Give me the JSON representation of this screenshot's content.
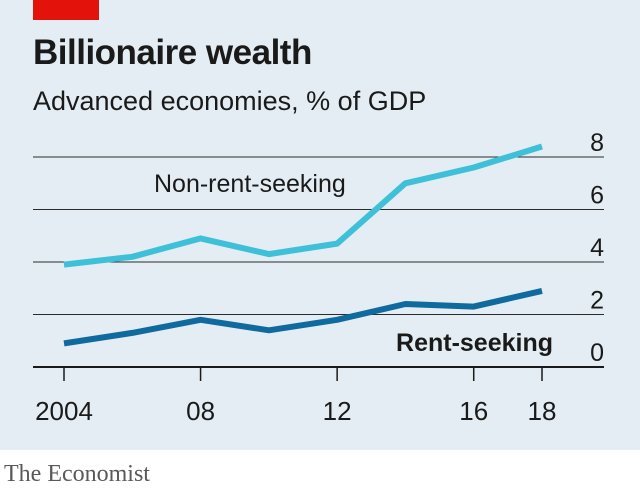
{
  "header": {
    "title": "Billionaire wealth",
    "subtitle": "Advanced economies, % of GDP"
  },
  "footer": {
    "source": "The Economist"
  },
  "colors": {
    "background": "#e3edf3",
    "accent": "#e3120b",
    "grid": "#1a1a1a",
    "non_rent_seeking": "#3ec0d8",
    "rent_seeking": "#0f6a9e"
  },
  "chart_data": {
    "type": "line",
    "title": "Billionaire wealth",
    "subtitle": "Advanced economies, % of GDP",
    "x": [
      2004,
      2006,
      2008,
      2010,
      2012,
      2014,
      2016,
      2018
    ],
    "x_ticks": [
      2004,
      2008,
      2012,
      2016,
      2018
    ],
    "x_tick_labels": [
      "2004",
      "08",
      "12",
      "16",
      "18"
    ],
    "xlim": [
      2004,
      2018
    ],
    "ylim": [
      0,
      8
    ],
    "y_ticks": [
      0,
      2,
      4,
      6,
      8
    ],
    "y_tick_labels": [
      "0",
      "2",
      "4",
      "6",
      "8"
    ],
    "y_axis_side": "right",
    "grid": true,
    "series": [
      {
        "name": "Non-rent-seeking",
        "color": "#3ec0d8",
        "values": [
          3.9,
          4.2,
          4.9,
          4.3,
          4.7,
          7.0,
          7.6,
          8.4
        ]
      },
      {
        "name": "Rent-seeking",
        "color": "#0f6a9e",
        "values": [
          0.9,
          1.3,
          1.8,
          1.4,
          1.8,
          2.4,
          2.3,
          2.9
        ]
      }
    ]
  }
}
